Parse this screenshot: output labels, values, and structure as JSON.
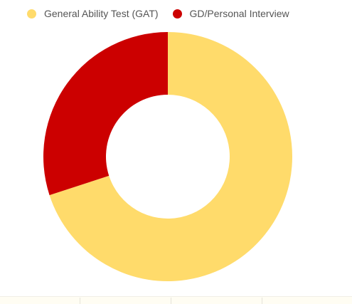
{
  "chart_data": {
    "type": "pie",
    "variant": "donut",
    "labels": [
      "General Ability Test (GAT)",
      "GD/Personal Interview"
    ],
    "values": [
      70,
      30
    ],
    "colors": [
      "#FFDB6B",
      "#CC0000"
    ],
    "legend_position": "top-left"
  }
}
